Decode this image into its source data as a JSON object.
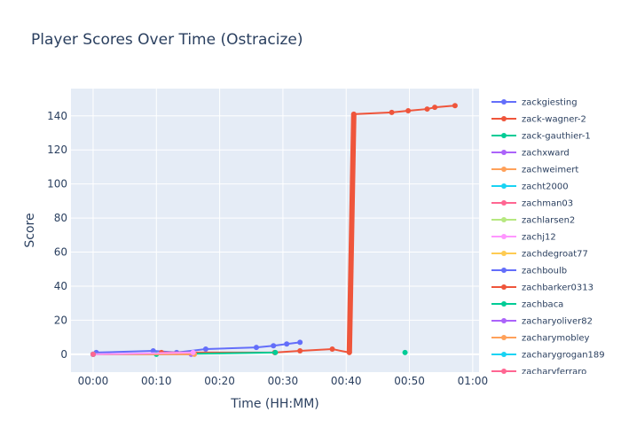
{
  "chart_data": {
    "type": "line",
    "title": "Player Scores Over Time (Ostracize)",
    "xlabel": "Time (HH:MM)",
    "ylabel": "Score",
    "x_unit": "minutes",
    "xlim": [
      -3.5,
      61
    ],
    "ylim": [
      -10.5,
      156
    ],
    "x_ticks": [
      {
        "value": 0,
        "label": "00:00"
      },
      {
        "value": 10,
        "label": "00:10"
      },
      {
        "value": 20,
        "label": "00:20"
      },
      {
        "value": 30,
        "label": "00:30"
      },
      {
        "value": 40,
        "label": "00:40"
      },
      {
        "value": 50,
        "label": "00:50"
      },
      {
        "value": 60,
        "label": "01:00"
      }
    ],
    "y_ticks": [
      0,
      20,
      40,
      60,
      80,
      100,
      120,
      140
    ],
    "grid": true,
    "legend_position": "right",
    "series": [
      {
        "name": "zackgiesting",
        "color": "#636efa",
        "x": [
          0.0,
          0.5,
          9.5,
          13.2,
          17.8,
          25.8,
          28.5,
          30.6,
          32.7
        ],
        "y": [
          0,
          1,
          2,
          1,
          3,
          4,
          5,
          6,
          7
        ]
      },
      {
        "name": "zack-wagner-2",
        "color": "#EF553B",
        "x": [
          10.8,
          28.7,
          32.7,
          37.8,
          40.5,
          41.2,
          47.2,
          49.8,
          52.8,
          54.0,
          57.2
        ],
        "y": [
          1,
          1,
          2,
          3,
          1,
          141,
          142,
          143,
          144,
          145,
          146
        ],
        "thick_segment": [
          40.5,
          41.2
        ]
      },
      {
        "name": "zack-gauthier-1",
        "color": "#00cc96",
        "x": [
          0.0,
          10.0,
          28.8
        ],
        "y": [
          0,
          0,
          1
        ]
      },
      {
        "name": "zachxward",
        "color": "#ab63fa",
        "x": [
          0.0,
          15.5
        ],
        "y": [
          0,
          0
        ]
      },
      {
        "name": "zachweimert",
        "color": "#FFA15A",
        "x": [
          0.0,
          16.0
        ],
        "y": [
          0,
          0
        ]
      },
      {
        "name": "zacht2000",
        "color": "#19d3f3",
        "x": [
          0.0
        ],
        "y": [
          0
        ]
      },
      {
        "name": "zachman03",
        "color": "#FF6692",
        "x": [
          0.0
        ],
        "y": [
          0
        ]
      },
      {
        "name": "zachlarsen2",
        "color": "#B6E880",
        "x": [
          0.0
        ],
        "y": [
          0
        ]
      },
      {
        "name": "zachj12",
        "color": "#FF97FF",
        "x": [
          0.0,
          15.8
        ],
        "y": [
          0,
          1
        ]
      },
      {
        "name": "zachdegroat77",
        "color": "#FECB52",
        "x": [
          0.0
        ],
        "y": [
          0
        ]
      },
      {
        "name": "zachboulb",
        "color": "#636efa",
        "x": [
          0.0
        ],
        "y": [
          0
        ]
      },
      {
        "name": "zachbarker0313",
        "color": "#EF553B",
        "x": [
          0.0
        ],
        "y": [
          0
        ]
      },
      {
        "name": "zachbaca",
        "color": "#00cc96",
        "x": [
          49.3
        ],
        "y": [
          1
        ]
      },
      {
        "name": "zacharyoliver82",
        "color": "#ab63fa",
        "x": [
          0.0
        ],
        "y": [
          0
        ]
      },
      {
        "name": "zacharymobley",
        "color": "#FFA15A",
        "x": [
          0.0
        ],
        "y": [
          0
        ]
      },
      {
        "name": "zacharygrogan189",
        "color": "#19d3f3",
        "x": [
          0.0
        ],
        "y": [
          0
        ]
      },
      {
        "name": "zacharyferraro",
        "color": "#FF6692",
        "x": [
          0.0
        ],
        "y": [
          0
        ]
      }
    ]
  }
}
